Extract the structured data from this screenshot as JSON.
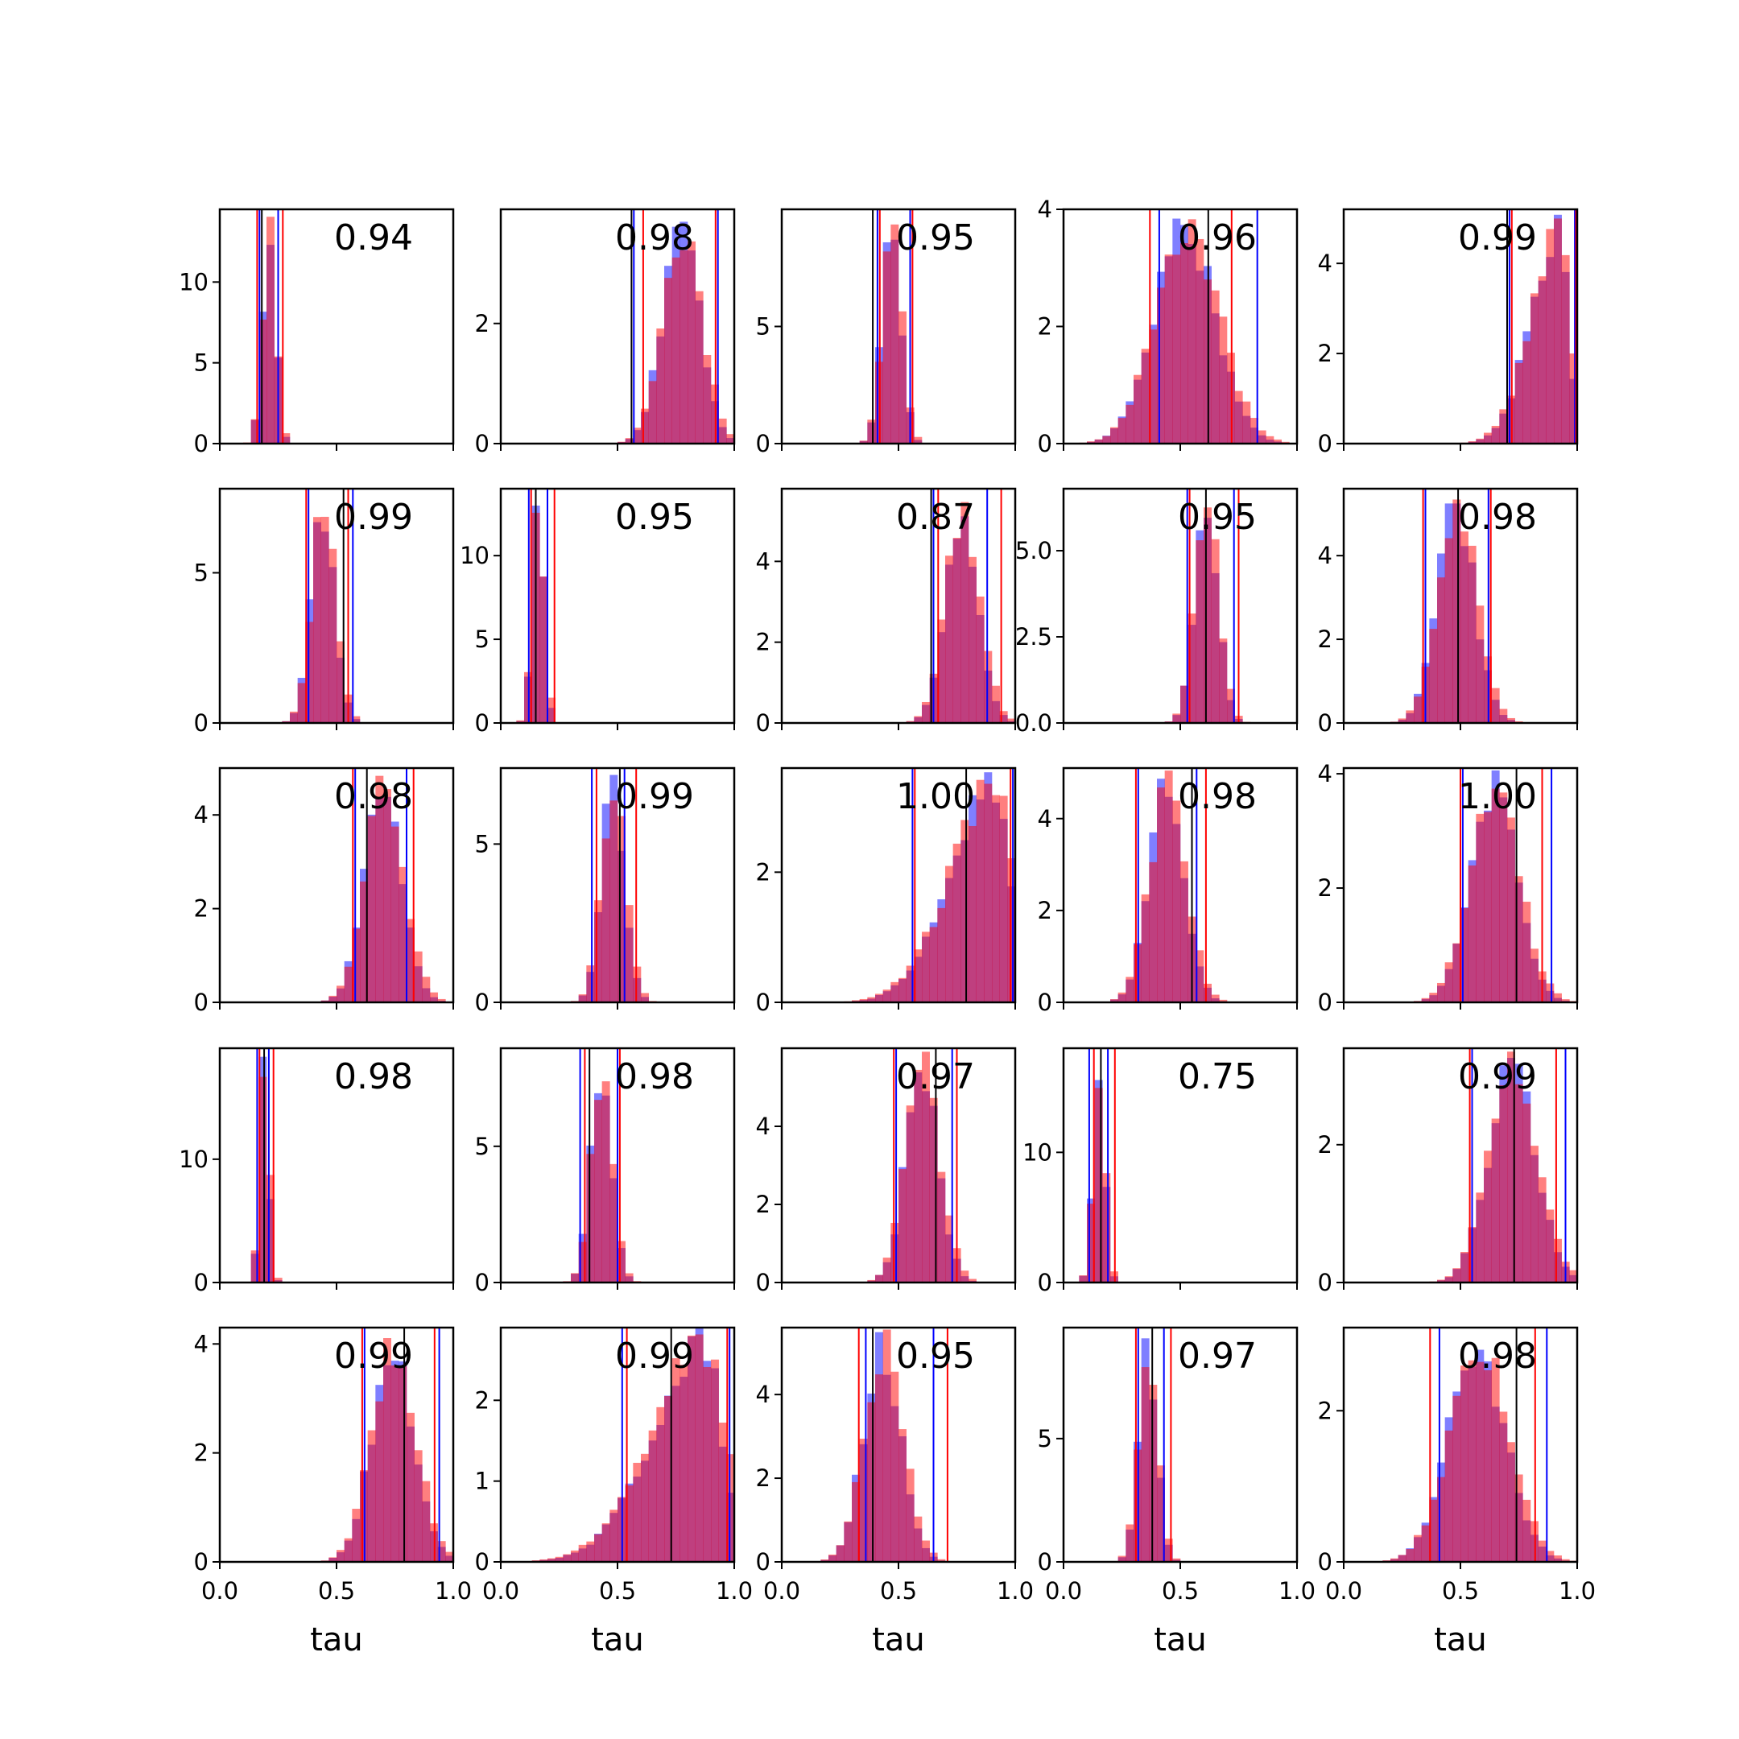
{
  "chart_data": {
    "type": "histogram-grid",
    "rows": 5,
    "cols": 5,
    "xlim": [
      0,
      1
    ],
    "xlabel": "tau",
    "xticks": [
      0.0,
      0.5,
      1.0
    ],
    "xtick_labels": [
      "0.0",
      "0.5",
      "1.0"
    ],
    "series_colors": {
      "blue": "#0000ff",
      "red": "#ff0000",
      "overlap": "#c0306a",
      "median": "#000000"
    },
    "panels": [
      {
        "label": "0.94",
        "dist": "normal",
        "center": 0.21,
        "width": 0.028,
        "ylim": [
          0,
          14.5
        ],
        "yticks": [
          0,
          5,
          10
        ],
        "ytick_labels": [
          "0",
          "5",
          "10"
        ],
        "lines": {
          "blue": [
            0.17,
            0.25
          ],
          "red": [
            0.16,
            0.27
          ],
          "black": [
            0.18
          ]
        }
      },
      {
        "label": "0.98",
        "dist": "normal",
        "center": 0.77,
        "width": 0.08,
        "ylim": [
          0,
          3.9
        ],
        "yticks": [
          0,
          2
        ],
        "ytick_labels": [
          "0",
          "2"
        ],
        "lines": {
          "blue": [
            0.57,
            0.93
          ],
          "red": [
            0.61,
            0.92
          ],
          "black": [
            0.56
          ]
        }
      },
      {
        "label": "0.95",
        "dist": "normal",
        "center": 0.47,
        "width": 0.04,
        "ylim": [
          0,
          10
        ],
        "yticks": [
          0,
          5
        ],
        "ytick_labels": [
          "0",
          "5"
        ],
        "lines": {
          "blue": [
            0.41,
            0.55
          ],
          "red": [
            0.42,
            0.56
          ],
          "black": [
            0.39
          ]
        }
      },
      {
        "label": "0.96",
        "dist": "normal",
        "center": 0.52,
        "width": 0.13,
        "ylim": [
          0,
          4
        ],
        "yticks": [
          0,
          2,
          4
        ],
        "ytick_labels": [
          "0",
          "2",
          "4"
        ],
        "lines": {
          "blue": [
            0.41,
            0.83
          ],
          "red": [
            0.37,
            0.72
          ],
          "black": [
            0.62
          ]
        }
      },
      {
        "label": "0.99",
        "dist": "left-skew",
        "center": 0.92,
        "width": 0.07,
        "ylim": [
          0,
          5.2
        ],
        "yticks": [
          0,
          2,
          4
        ],
        "ytick_labels": [
          "0",
          "2",
          "4"
        ],
        "lines": {
          "blue": [
            0.71,
            0.99
          ],
          "red": [
            0.72,
            0.995
          ],
          "black": [
            0.7
          ]
        }
      },
      {
        "label": "0.99",
        "dist": "normal",
        "center": 0.44,
        "width": 0.05,
        "ylim": [
          0,
          7.8
        ],
        "yticks": [
          0,
          5
        ],
        "ytick_labels": [
          "0",
          "5"
        ],
        "lines": {
          "blue": [
            0.38,
            0.57
          ],
          "red": [
            0.37,
            0.55
          ],
          "black": [
            0.53
          ]
        }
      },
      {
        "label": "0.95",
        "dist": "normal",
        "center": 0.16,
        "width": 0.025,
        "ylim": [
          0,
          14
        ],
        "yticks": [
          0,
          5,
          10
        ],
        "ytick_labels": [
          "0",
          "5",
          "10"
        ],
        "lines": {
          "blue": [
            0.12,
            0.2
          ],
          "red": [
            0.13,
            0.23
          ],
          "black": [
            0.15
          ]
        }
      },
      {
        "label": "0.87",
        "dist": "normal",
        "center": 0.77,
        "width": 0.07,
        "ylim": [
          0,
          5.8
        ],
        "yticks": [
          0,
          2,
          4
        ],
        "ytick_labels": [
          "0",
          "2",
          "4"
        ],
        "lines": {
          "blue": [
            0.65,
            0.88
          ],
          "red": [
            0.67,
            0.94
          ],
          "black": [
            0.64
          ]
        }
      },
      {
        "label": "0.95",
        "dist": "normal",
        "center": 0.61,
        "width": 0.05,
        "ylim": [
          0,
          6.8
        ],
        "yticks": [
          0,
          2.5,
          5
        ],
        "ytick_labels": [
          "0.0",
          "2.5",
          "5.0"
        ],
        "lines": {
          "blue": [
            0.53,
            0.73
          ],
          "red": [
            0.54,
            0.75
          ],
          "black": [
            0.61
          ]
        }
      },
      {
        "label": "0.98",
        "dist": "normal",
        "center": 0.48,
        "width": 0.08,
        "ylim": [
          0,
          5.6
        ],
        "yticks": [
          0,
          2,
          4
        ],
        "ytick_labels": [
          "0",
          "2",
          "4"
        ],
        "lines": {
          "blue": [
            0.35,
            0.62
          ],
          "red": [
            0.34,
            0.63
          ],
          "black": [
            0.49
          ]
        }
      },
      {
        "label": "0.98",
        "dist": "normal",
        "center": 0.7,
        "width": 0.08,
        "ylim": [
          0,
          5
        ],
        "yticks": [
          0,
          2,
          4
        ],
        "ytick_labels": [
          "0",
          "2",
          "4"
        ],
        "lines": {
          "blue": [
            0.58,
            0.8
          ],
          "red": [
            0.57,
            0.83
          ],
          "black": [
            0.63
          ]
        }
      },
      {
        "label": "0.99",
        "dist": "normal",
        "center": 0.48,
        "width": 0.05,
        "ylim": [
          0,
          7.4
        ],
        "yticks": [
          0,
          5
        ],
        "ytick_labels": [
          "0",
          "5"
        ],
        "lines": {
          "blue": [
            0.39,
            0.53
          ],
          "red": [
            0.41,
            0.58
          ],
          "black": [
            0.51
          ]
        }
      },
      {
        "label": "1.00",
        "dist": "left-skew",
        "center": 0.91,
        "width": 0.11,
        "ylim": [
          0,
          3.6
        ],
        "yticks": [
          0,
          2
        ],
        "ytick_labels": [
          "0",
          "2"
        ],
        "lines": {
          "blue": [
            0.56,
            0.99
          ],
          "red": [
            0.57,
            0.98
          ],
          "black": [
            0.79
          ]
        }
      },
      {
        "label": "0.98",
        "dist": "normal",
        "center": 0.44,
        "width": 0.075,
        "ylim": [
          0,
          5.1
        ],
        "yticks": [
          0,
          2,
          4
        ],
        "ytick_labels": [
          "0",
          "2",
          "4"
        ],
        "lines": {
          "blue": [
            0.32,
            0.57
          ],
          "red": [
            0.31,
            0.61
          ],
          "black": [
            0.55
          ]
        }
      },
      {
        "label": "1.00",
        "dist": "normal",
        "center": 0.64,
        "width": 0.1,
        "ylim": [
          0,
          4.1
        ],
        "yticks": [
          0,
          2,
          4
        ],
        "ytick_labels": [
          "0",
          "2",
          "4"
        ],
        "lines": {
          "blue": [
            0.51,
            0.89
          ],
          "red": [
            0.5,
            0.85
          ],
          "black": [
            0.74
          ]
        }
      },
      {
        "label": "0.98",
        "dist": "normal",
        "center": 0.19,
        "width": 0.02,
        "ylim": [
          0,
          19
        ],
        "yticks": [
          0,
          10
        ],
        "ytick_labels": [
          "0",
          "10"
        ],
        "lines": {
          "blue": [
            0.16,
            0.21
          ],
          "red": [
            0.17,
            0.23
          ],
          "black": [
            0.19
          ]
        }
      },
      {
        "label": "0.98",
        "dist": "normal",
        "center": 0.43,
        "width": 0.045,
        "ylim": [
          0,
          8.6
        ],
        "yticks": [
          0,
          5
        ],
        "ytick_labels": [
          "0",
          "5"
        ],
        "lines": {
          "blue": [
            0.34,
            0.5
          ],
          "red": [
            0.36,
            0.51
          ],
          "black": [
            0.38
          ]
        }
      },
      {
        "label": "0.97",
        "dist": "normal",
        "center": 0.6,
        "width": 0.07,
        "ylim": [
          0,
          6
        ],
        "yticks": [
          0,
          2,
          4
        ],
        "ytick_labels": [
          "0",
          "2",
          "4"
        ],
        "lines": {
          "blue": [
            0.49,
            0.73
          ],
          "red": [
            0.48,
            0.75
          ],
          "black": [
            0.66
          ]
        }
      },
      {
        "label": "0.75",
        "dist": "normal",
        "center": 0.15,
        "width": 0.025,
        "ylim": [
          0,
          18
        ],
        "yticks": [
          0,
          10
        ],
        "ytick_labels": [
          "0",
          "10"
        ],
        "lines": {
          "blue": [
            0.11,
            0.19
          ],
          "red": [
            0.13,
            0.22
          ],
          "black": [
            0.16
          ]
        }
      },
      {
        "label": "0.99",
        "dist": "normal",
        "center": 0.72,
        "width": 0.1,
        "ylim": [
          0,
          3.4
        ],
        "yticks": [
          0,
          2
        ],
        "ytick_labels": [
          "0",
          "2"
        ],
        "lines": {
          "blue": [
            0.55,
            0.95
          ],
          "red": [
            0.54,
            0.91
          ],
          "black": [
            0.73
          ]
        }
      },
      {
        "label": "0.99",
        "dist": "normal",
        "center": 0.74,
        "width": 0.09,
        "ylim": [
          0,
          4.3
        ],
        "yticks": [
          0,
          2,
          4
        ],
        "ytick_labels": [
          "0",
          "2",
          "4"
        ],
        "lines": {
          "blue": [
            0.62,
            0.94
          ],
          "red": [
            0.61,
            0.92
          ],
          "black": [
            0.79
          ]
        }
      },
      {
        "label": "0.99",
        "dist": "left-skew",
        "center": 0.87,
        "width": 0.13,
        "ylim": [
          0,
          2.9
        ],
        "yticks": [
          0,
          1,
          2
        ],
        "ytick_labels": [
          "0",
          "1",
          "2"
        ],
        "lines": {
          "blue": [
            0.52,
            0.98
          ],
          "red": [
            0.54,
            0.97
          ],
          "black": [
            0.73
          ]
        }
      },
      {
        "label": "0.95",
        "dist": "normal",
        "center": 0.43,
        "width": 0.08,
        "ylim": [
          0,
          5.6
        ],
        "yticks": [
          0,
          2,
          4
        ],
        "ytick_labels": [
          "0",
          "2",
          "4"
        ],
        "lines": {
          "blue": [
            0.36,
            0.65
          ],
          "red": [
            0.33,
            0.71
          ],
          "black": [
            0.39
          ]
        }
      },
      {
        "label": "0.97",
        "dist": "normal",
        "center": 0.36,
        "width": 0.04,
        "ylim": [
          0,
          9.5
        ],
        "yticks": [
          0,
          5
        ],
        "ytick_labels": [
          "0",
          "5"
        ],
        "lines": {
          "blue": [
            0.32,
            0.43
          ],
          "red": [
            0.31,
            0.46
          ],
          "black": [
            0.38
          ]
        }
      },
      {
        "label": "0.98",
        "dist": "normal",
        "center": 0.57,
        "width": 0.12,
        "ylim": [
          0,
          3.1
        ],
        "yticks": [
          0,
          2
        ],
        "ytick_labels": [
          "0",
          "2"
        ],
        "lines": {
          "blue": [
            0.41,
            0.87
          ],
          "red": [
            0.37,
            0.82
          ],
          "black": [
            0.74
          ]
        }
      }
    ]
  }
}
